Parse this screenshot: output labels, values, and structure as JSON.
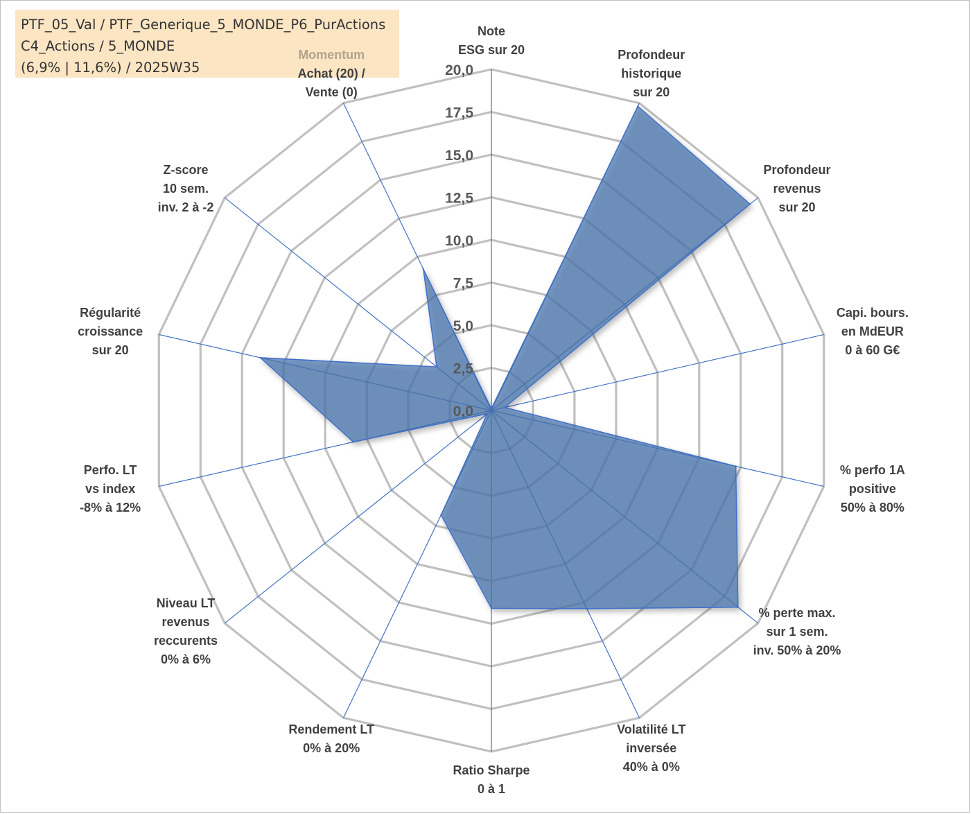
{
  "info_box": {
    "line1": "PTF_05_Val / PTF_Generique_5_MONDE_P6_PurActions",
    "line2": "C4_Actions / 5_MONDE",
    "line3": "(6,9% | 11,6%) / 2025W35"
  },
  "chart_data": {
    "type": "radar",
    "title": "",
    "rmin": 0,
    "rmax": 20,
    "tick_values": [
      0,
      2.5,
      5,
      7.5,
      10,
      12.5,
      15,
      17.5,
      20
    ],
    "tick_labels": [
      "0,0",
      "2,5",
      "5,0",
      "7,5",
      "10,0",
      "12,5",
      "15,0",
      "17,5",
      "20,0"
    ],
    "axes": [
      {
        "label_lines": [
          "Note",
          "ESG sur 20"
        ]
      },
      {
        "label_lines": [
          "Profondeur",
          "historique",
          "sur 20"
        ]
      },
      {
        "label_lines": [
          "Profondeur",
          "revenus",
          "sur 20"
        ]
      },
      {
        "label_lines": [
          "Capi. bours.",
          "en MdEUR",
          "0 à 60 G€"
        ]
      },
      {
        "label_lines": [
          "% perfo 1A",
          "positive",
          "50% à 80%"
        ]
      },
      {
        "label_lines": [
          "% perte max.",
          "sur 1 sem.",
          "inv. 50% à 20%"
        ]
      },
      {
        "label_lines": [
          "Volatilité LT",
          "inversée",
          "40% à 0%"
        ]
      },
      {
        "label_lines": [
          "Ratio Sharpe",
          "0 à 1"
        ]
      },
      {
        "label_lines": [
          "Rendement LT",
          "0% à 20%"
        ]
      },
      {
        "label_lines": [
          "Niveau LT",
          "revenus",
          "reccurents",
          "0% à 6%"
        ]
      },
      {
        "label_lines": [
          "Perfo. LT",
          "vs index",
          "-8% à 12%"
        ]
      },
      {
        "label_lines": [
          "Régularité",
          "croissance",
          "sur 20"
        ]
      },
      {
        "label_lines": [
          "Z-score",
          "10 sem.",
          "inv. 2 à -2"
        ]
      },
      {
        "label_lines": [
          "Achat (20) /",
          "Vente (0)"
        ],
        "header": "Momentum"
      }
    ],
    "series": [
      {
        "values": [
          0.1,
          19.8,
          19.4,
          0.8,
          14.7,
          18.5,
          12.9,
          11.6,
          6.8,
          0.3,
          8.3,
          13.9,
          4.1,
          9.2
        ],
        "color": "#4a76ad"
      }
    ],
    "colors": {
      "fill": "#4a76ad",
      "stroke": "#3f6fc8",
      "grid": "#c0c0c0",
      "spoke": "#4472c4",
      "info_bg": "#fbe5c3"
    }
  }
}
